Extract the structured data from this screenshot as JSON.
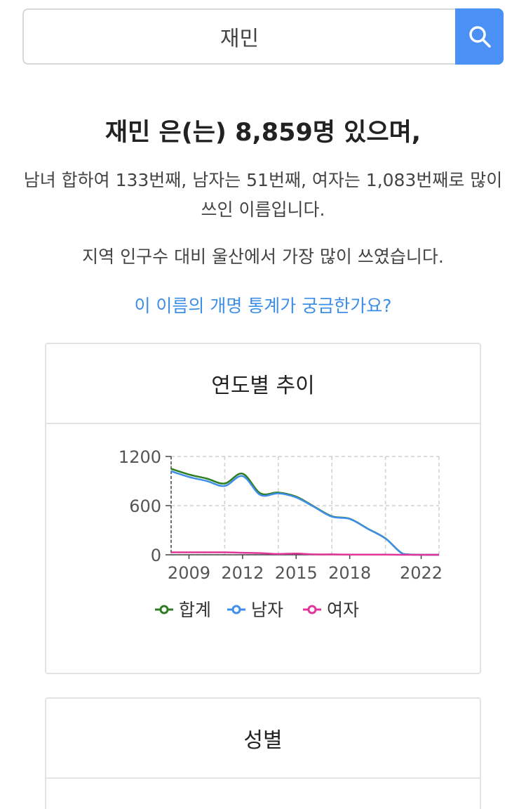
{
  "search": {
    "value": "재민"
  },
  "headline": "재민 은(는) 8,859명 있으며,",
  "description": "남녀 합하여 133번째, 남자는 51번째, 여자는 1,083번째로 많이 쓰인 이름입니다.",
  "region": "지역 인구수 대비 울산에서 가장 많이 쓰였습니다.",
  "link": "이 이름의 개명 통계가 궁금한가요?",
  "card1": {
    "title": "연도별 추이"
  },
  "card2": {
    "title": "성별"
  },
  "colors": {
    "accent": "#4a90f5",
    "total": "#2e7d22",
    "male": "#3f8ee8",
    "female": "#e0359a"
  },
  "chart_data": {
    "type": "line",
    "x": [
      2008,
      2009,
      2010,
      2011,
      2012,
      2013,
      2014,
      2015,
      2016,
      2017,
      2018,
      2019,
      2020,
      2021,
      2022,
      2023
    ],
    "series": [
      {
        "name": "합계",
        "values": [
          1050,
          980,
          930,
          870,
          990,
          750,
          760,
          710,
          590,
          470,
          440,
          320,
          200,
          10,
          0,
          0
        ]
      },
      {
        "name": "남자",
        "values": [
          1020,
          950,
          900,
          840,
          960,
          730,
          750,
          700,
          585,
          465,
          438,
          318,
          198,
          10,
          0,
          0
        ]
      },
      {
        "name": "여자",
        "values": [
          30,
          30,
          30,
          30,
          25,
          20,
          10,
          15,
          5,
          5,
          2,
          2,
          2,
          0,
          0,
          0
        ]
      }
    ],
    "x_ticks": [
      "2009",
      "2012",
      "2015",
      "2018",
      "2022"
    ],
    "y_ticks": [
      "0",
      "600",
      "1200"
    ],
    "ylim": [
      0,
      1200
    ],
    "grid": true,
    "legend": "bottom"
  }
}
